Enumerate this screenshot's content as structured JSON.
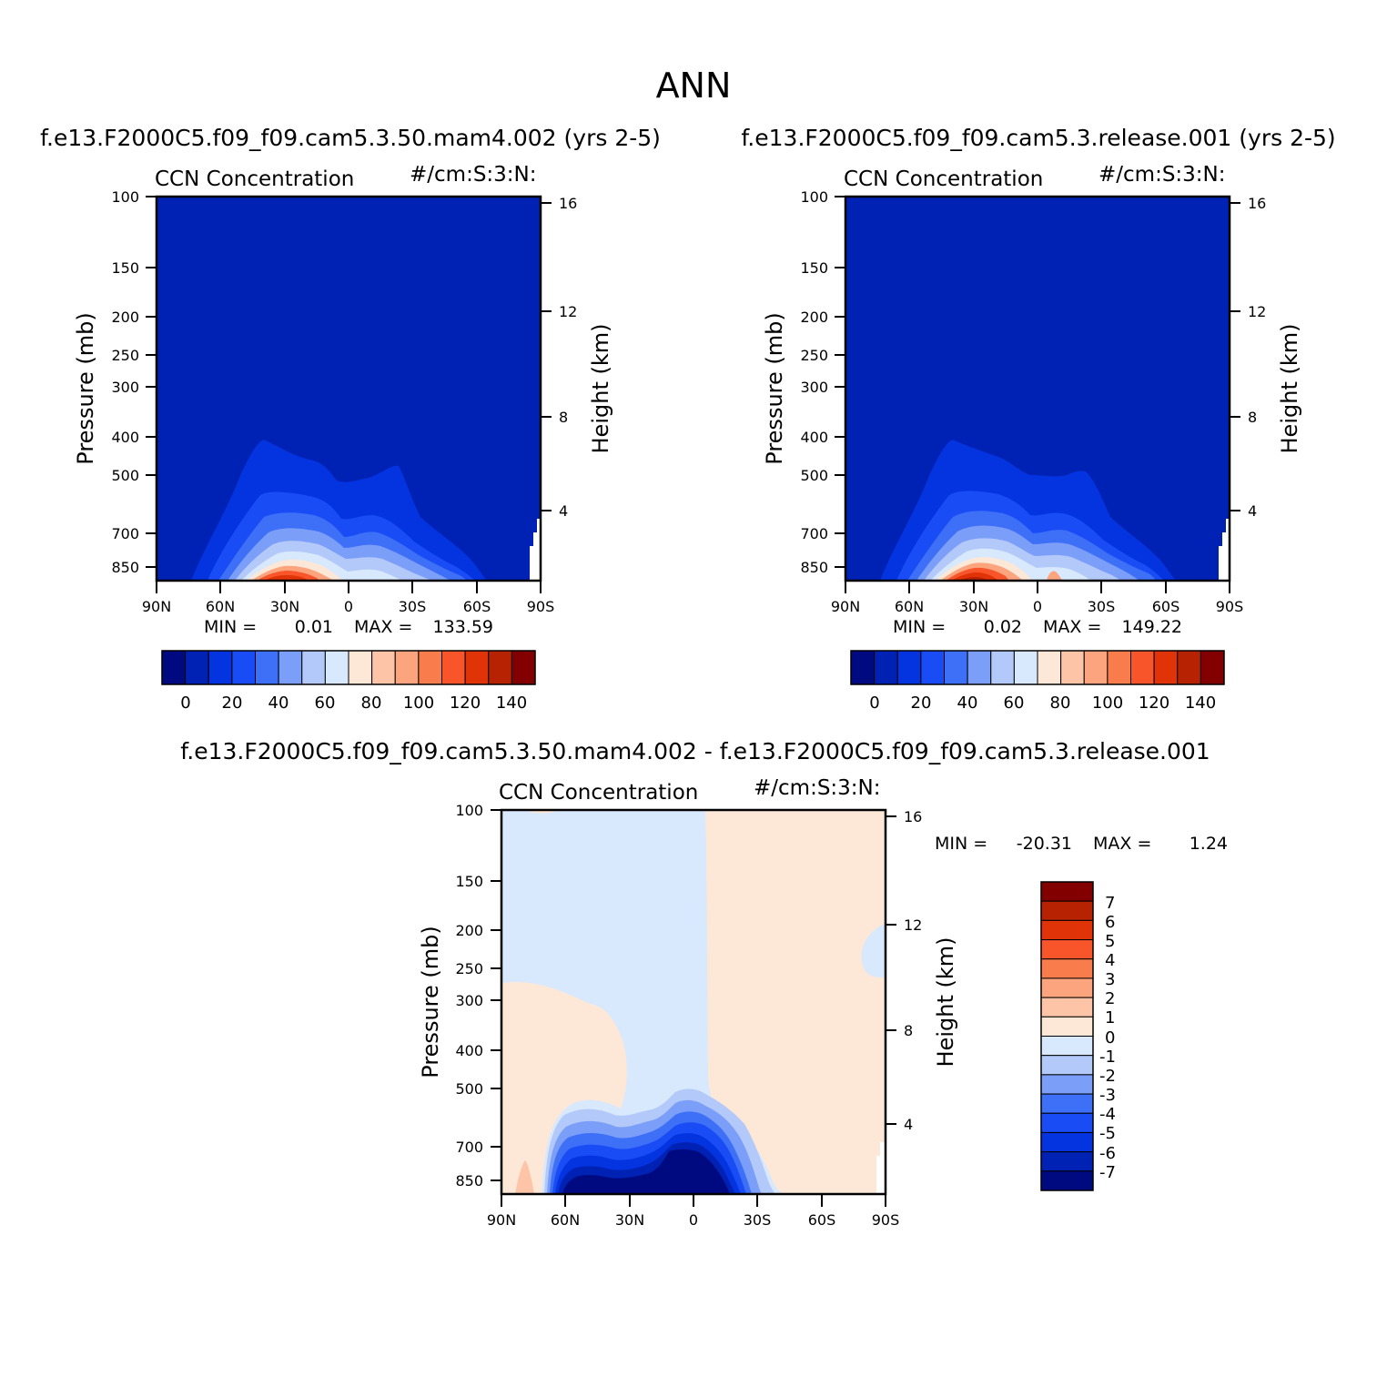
{
  "page_title": "ANN",
  "chart_data": [
    {
      "type": "heatmap",
      "id": "panel-a",
      "title": "f.e13.F2000C5.f09_f09.cam5.3.50.mam4.002 (yrs 2-5)",
      "left_label": "CCN Concentration",
      "right_label": "#/cm:S:3:N:",
      "ylabel": "Pressure (mb)",
      "ylabel_right": "Height (km)",
      "x_ticks": [
        "90N",
        "60N",
        "30N",
        "0",
        "30S",
        "60S",
        "90S"
      ],
      "y_ticks": [
        "100",
        "150",
        "200",
        "250",
        "300",
        "400",
        "500",
        "700",
        "850"
      ],
      "y_ticks_right": [
        "16",
        "12",
        "8",
        "4"
      ],
      "min_label": "MIN =",
      "min_value": "0.01",
      "max_label": "MAX =",
      "max_value": "133.59",
      "colorbar_labels": [
        "0",
        "20",
        "40",
        "60",
        "80",
        "100",
        "120",
        "140"
      ]
    },
    {
      "type": "heatmap",
      "id": "panel-b",
      "title": "f.e13.F2000C5.f09_f09.cam5.3.release.001 (yrs 2-5)",
      "left_label": "CCN Concentration",
      "right_label": "#/cm:S:3:N:",
      "ylabel": "Pressure (mb)",
      "ylabel_right": "Height (km)",
      "x_ticks": [
        "90N",
        "60N",
        "30N",
        "0",
        "30S",
        "60S",
        "90S"
      ],
      "y_ticks": [
        "100",
        "150",
        "200",
        "250",
        "300",
        "400",
        "500",
        "700",
        "850"
      ],
      "y_ticks_right": [
        "16",
        "12",
        "8",
        "4"
      ],
      "min_label": "MIN =",
      "min_value": "0.02",
      "max_label": "MAX =",
      "max_value": "149.22",
      "colorbar_labels": [
        "0",
        "20",
        "40",
        "60",
        "80",
        "100",
        "120",
        "140"
      ]
    },
    {
      "type": "heatmap",
      "id": "panel-diff",
      "title": "f.e13.F2000C5.f09_f09.cam5.3.50.mam4.002 - f.e13.F2000C5.f09_f09.cam5.3.release.001",
      "left_label": "CCN Concentration",
      "right_label": "#/cm:S:3:N:",
      "ylabel": "Pressure (mb)",
      "ylabel_right": "Height (km)",
      "x_ticks": [
        "90N",
        "60N",
        "30N",
        "0",
        "30S",
        "60S",
        "90S"
      ],
      "y_ticks": [
        "100",
        "150",
        "200",
        "250",
        "300",
        "400",
        "500",
        "700",
        "850"
      ],
      "y_ticks_right": [
        "16",
        "12",
        "8",
        "4"
      ],
      "min_label": "MIN =",
      "min_value": "-20.31",
      "max_label": "MAX =",
      "max_value": "1.24",
      "colorbar_labels": [
        "7",
        "6",
        "5",
        "4",
        "3",
        "2",
        "1",
        "0",
        "-1",
        "-2",
        "-3",
        "-4",
        "-5",
        "-6",
        "-7"
      ]
    }
  ],
  "colors": {
    "scale": [
      "#000a80",
      "#0022b4",
      "#0433e0",
      "#1a4cf5",
      "#3d6ff7",
      "#7b9ef8",
      "#b3c9fa",
      "#d8e8fd",
      "#fde8d8",
      "#fdc4a8",
      "#fba47e",
      "#f97c4d",
      "#f8552a",
      "#e03308",
      "#b72203",
      "#820000"
    ],
    "diff_scale": [
      "#820000",
      "#b72203",
      "#e03308",
      "#f8552a",
      "#f97c4d",
      "#fba47e",
      "#fdc4a8",
      "#fde8d8",
      "#d8e8fd",
      "#b3c9fa",
      "#7b9ef8",
      "#3d6ff7",
      "#1a4cf5",
      "#0433e0",
      "#0022b4",
      "#000a80"
    ]
  }
}
